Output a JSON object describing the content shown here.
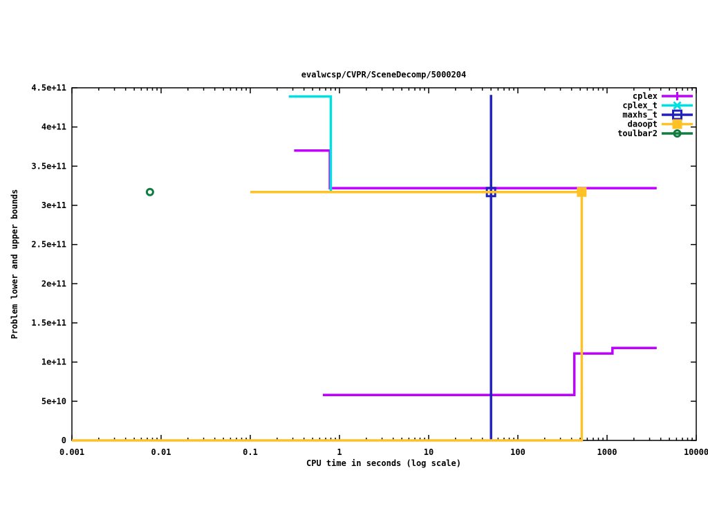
{
  "title": "evalwcsp/CVPR/SceneDecomp/5000204",
  "chart_data": {
    "type": "line",
    "title": "evalwcsp/CVPR/SceneDecomp/5000204",
    "xlabel": "CPU time in seconds (log scale)",
    "ylabel": "Problem lower and upper bounds",
    "x_scale": "log10",
    "xlim": [
      0.001,
      10000
    ],
    "ylim": [
      0,
      450000000000
    ],
    "x_ticks": [
      0.001,
      0.01,
      0.1,
      1,
      10,
      100,
      1000,
      10000
    ],
    "x_tick_labels": [
      "0.001",
      "0.01",
      "0.1",
      "1",
      "10",
      "100",
      "1000",
      "10000"
    ],
    "y_ticks": [
      0,
      50000000000,
      100000000000,
      150000000000,
      200000000000,
      250000000000,
      300000000000,
      350000000000,
      400000000000,
      450000000000
    ],
    "y_tick_labels": [
      "0",
      "5e+10",
      "1e+11",
      "1.5e+11",
      "2e+11",
      "2.5e+11",
      "3e+11",
      "3.5e+11",
      "4e+11",
      "4.5e+11"
    ],
    "grid": false,
    "legend_position": "top-right",
    "axis_color": "#000000",
    "background": "#ffffff",
    "series": [
      {
        "name": "cplex",
        "color": "#bf00ff",
        "marker": "plus",
        "lines": [
          [
            [
              0.31,
              370000000000
            ],
            [
              0.78,
              370000000000
            ],
            [
              0.78,
              322000000000
            ],
            [
              3600,
              322000000000
            ]
          ],
          [
            [
              0.65,
              58000000000
            ],
            [
              430,
              58000000000
            ],
            [
              430,
              111000000000
            ],
            [
              1150,
              111000000000
            ],
            [
              1150,
              118000000000
            ],
            [
              3600,
              118000000000
            ]
          ]
        ],
        "points": []
      },
      {
        "name": "cplex_t",
        "color": "#00e0e0",
        "marker": "cross",
        "lines": [
          [
            [
              0.27,
              439000000000
            ],
            [
              0.8,
              439000000000
            ],
            [
              0.8,
              317000000000
            ]
          ]
        ],
        "points": []
      },
      {
        "name": "maxhs_t",
        "color": "#2222bb",
        "marker": "open-square",
        "lines": [
          [
            [
              50,
              441000000000
            ],
            [
              50,
              0
            ]
          ]
        ],
        "points": [
          [
            50,
            317000000000
          ]
        ]
      },
      {
        "name": "daoopt",
        "color": "#ffc125",
        "marker": "filled-square",
        "lines": [
          [
            [
              0.1,
              317000000000
            ],
            [
              520,
              317000000000
            ]
          ],
          [
            [
              0.001,
              0
            ],
            [
              520,
              0
            ],
            [
              520,
              317000000000
            ]
          ]
        ],
        "points": [
          [
            520,
            317000000000
          ]
        ]
      },
      {
        "name": "toulbar2",
        "color": "#0f7d40",
        "marker": "open-circle",
        "lines": [],
        "points": [
          [
            0.0075,
            317000000000
          ]
        ]
      }
    ]
  }
}
